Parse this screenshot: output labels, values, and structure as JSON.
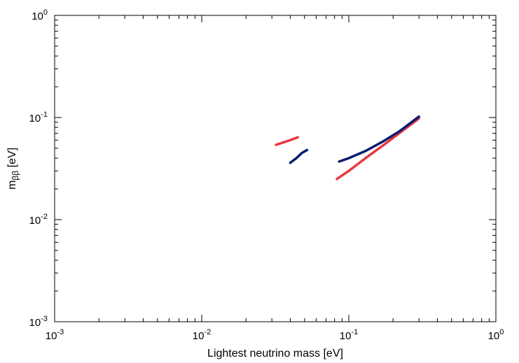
{
  "chart_data": {
    "type": "scatter",
    "title": "",
    "xlabel": "Lightest neutrino mass [eV]",
    "ylabel": {
      "base": "m",
      "subscript": "ββ",
      "suffix": " [eV]"
    },
    "xscale": "log",
    "yscale": "log",
    "xlim": [
      0.001,
      1
    ],
    "ylim": [
      0.001,
      1
    ],
    "grid": false,
    "legend": "none",
    "x_ticks": [
      {
        "base": "10",
        "exp": "-3",
        "value": 0.001
      },
      {
        "base": "10",
        "exp": "-2",
        "value": 0.01
      },
      {
        "base": "10",
        "exp": "-1",
        "value": 0.1
      },
      {
        "base": "10",
        "exp": "0",
        "value": 1
      }
    ],
    "y_ticks": [
      {
        "base": "10",
        "exp": "-3",
        "value": 0.001
      },
      {
        "base": "10",
        "exp": "-2",
        "value": 0.01
      },
      {
        "base": "10",
        "exp": "-1",
        "value": 0.1
      },
      {
        "base": "10",
        "exp": "0",
        "value": 1
      }
    ],
    "series": [
      {
        "color": "#e8383d",
        "segments": [
          [
            [
              0.032,
              0.054
            ],
            [
              0.036,
              0.057
            ],
            [
              0.04,
              0.06
            ],
            [
              0.045,
              0.064
            ]
          ],
          [
            [
              0.083,
              0.025
            ],
            [
              0.1,
              0.03
            ],
            [
              0.13,
              0.04
            ],
            [
              0.17,
              0.053
            ],
            [
              0.22,
              0.07
            ],
            [
              0.3,
              0.098
            ]
          ]
        ]
      },
      {
        "color": "#0a1a6e",
        "segments": [
          [
            [
              0.04,
              0.036
            ],
            [
              0.044,
              0.04
            ],
            [
              0.048,
              0.045
            ],
            [
              0.052,
              0.048
            ]
          ],
          [
            [
              0.086,
              0.037
            ],
            [
              0.1,
              0.04
            ],
            [
              0.13,
              0.047
            ],
            [
              0.17,
              0.058
            ],
            [
              0.22,
              0.073
            ],
            [
              0.3,
              0.102
            ]
          ]
        ]
      }
    ]
  }
}
